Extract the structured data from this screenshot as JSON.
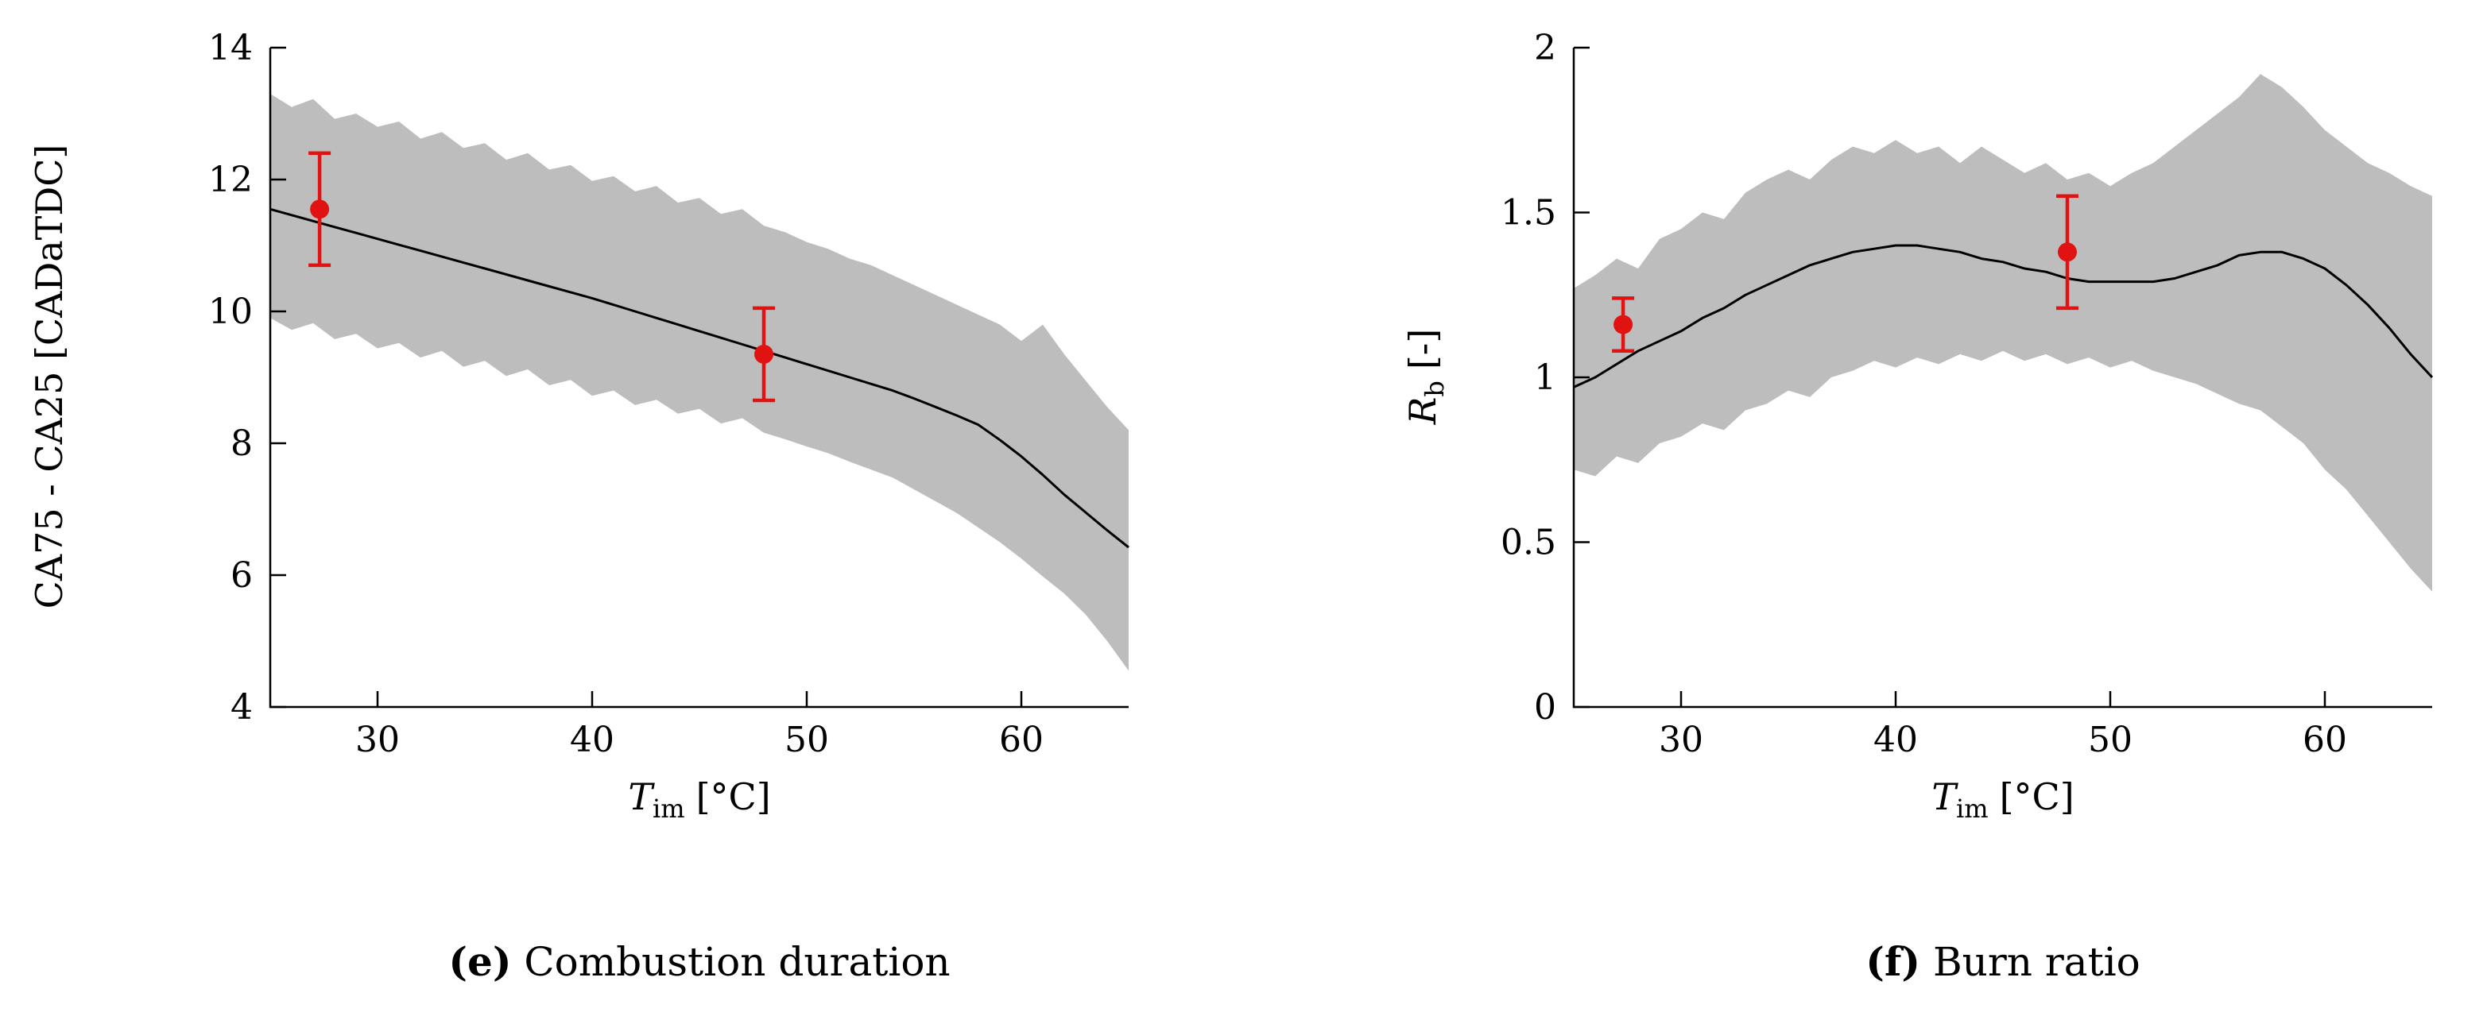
{
  "figure": {
    "band_color": "#bdbdbd",
    "line_color": "#000000",
    "point_color": "#e11212",
    "axis_color": "#000000"
  },
  "charts": [
    {
      "id": "combustion-duration",
      "type": "line",
      "caption_label": "(e)",
      "caption_text": "Combustion duration",
      "ylabel": "CA75 - CA25 [CADaTDC]",
      "xlabel": {
        "var": "T",
        "sub": "im",
        "unit": "[°C]"
      },
      "xlim": [
        25,
        65
      ],
      "ylim": [
        4,
        14
      ],
      "xticks": [
        30,
        40,
        50,
        60
      ],
      "xtick_labels": [
        "30",
        "40",
        "50",
        "60"
      ],
      "yticks": [
        4,
        6,
        8,
        10,
        12,
        14
      ],
      "ytick_labels": [
        "4",
        "6",
        "8",
        "10",
        "12",
        "14"
      ],
      "x_start": 25,
      "x_step": 1,
      "mean": [
        11.55,
        11.46,
        11.37,
        11.28,
        11.19,
        11.1,
        11.01,
        10.92,
        10.83,
        10.74,
        10.65,
        10.56,
        10.47,
        10.38,
        10.29,
        10.2,
        10.1,
        10.0,
        9.9,
        9.8,
        9.7,
        9.6,
        9.5,
        9.4,
        9.3,
        9.2,
        9.1,
        9.0,
        8.9,
        8.8,
        8.68,
        8.55,
        8.42,
        8.28,
        8.05,
        7.8,
        7.52,
        7.22,
        6.95,
        6.68,
        6.42
      ],
      "band_upper": [
        13.3,
        13.1,
        13.22,
        12.92,
        13.0,
        12.8,
        12.88,
        12.62,
        12.72,
        12.48,
        12.55,
        12.3,
        12.4,
        12.15,
        12.22,
        11.98,
        12.05,
        11.82,
        11.9,
        11.65,
        11.72,
        11.48,
        11.55,
        11.3,
        11.2,
        11.05,
        10.95,
        10.8,
        10.7,
        10.55,
        10.4,
        10.25,
        10.1,
        9.95,
        9.8,
        9.55,
        9.8,
        9.35,
        8.95,
        8.55,
        8.2
      ],
      "band_lower": [
        9.9,
        9.72,
        9.82,
        9.58,
        9.66,
        9.44,
        9.52,
        9.3,
        9.4,
        9.16,
        9.25,
        9.02,
        9.12,
        8.88,
        8.96,
        8.72,
        8.8,
        8.58,
        8.66,
        8.45,
        8.52,
        8.3,
        8.38,
        8.16,
        8.06,
        7.95,
        7.85,
        7.72,
        7.6,
        7.48,
        7.3,
        7.12,
        6.94,
        6.72,
        6.5,
        6.25,
        5.98,
        5.72,
        5.4,
        5.0,
        4.55
      ],
      "points": [
        {
          "x": 27.3,
          "y": 11.55,
          "err": 0.85
        },
        {
          "x": 48.0,
          "y": 9.35,
          "err": 0.7
        }
      ]
    },
    {
      "id": "burn-ratio",
      "type": "line",
      "caption_label": "(f)",
      "caption_text": "Burn ratio",
      "ylabel": {
        "var": "R",
        "sub": "b",
        "unit": "[-]"
      },
      "xlabel": {
        "var": "T",
        "sub": "im",
        "unit": "[°C]"
      },
      "xlim": [
        25,
        65
      ],
      "ylim": [
        0,
        2
      ],
      "xticks": [
        30,
        40,
        50,
        60
      ],
      "xtick_labels": [
        "30",
        "40",
        "50",
        "60"
      ],
      "yticks": [
        0,
        0.5,
        1,
        1.5,
        2
      ],
      "ytick_labels": [
        "0",
        "0.5",
        "1",
        "1.5",
        "2"
      ],
      "x_start": 25,
      "x_step": 1,
      "mean": [
        0.97,
        1.0,
        1.04,
        1.08,
        1.11,
        1.14,
        1.18,
        1.21,
        1.25,
        1.28,
        1.31,
        1.34,
        1.36,
        1.38,
        1.39,
        1.4,
        1.4,
        1.39,
        1.38,
        1.36,
        1.35,
        1.33,
        1.32,
        1.3,
        1.29,
        1.29,
        1.29,
        1.29,
        1.3,
        1.32,
        1.34,
        1.37,
        1.38,
        1.38,
        1.36,
        1.33,
        1.28,
        1.22,
        1.15,
        1.07,
        1.0
      ],
      "band_upper": [
        1.27,
        1.31,
        1.36,
        1.33,
        1.42,
        1.45,
        1.5,
        1.48,
        1.56,
        1.6,
        1.63,
        1.6,
        1.66,
        1.7,
        1.68,
        1.72,
        1.68,
        1.7,
        1.65,
        1.7,
        1.66,
        1.62,
        1.65,
        1.6,
        1.62,
        1.58,
        1.62,
        1.65,
        1.7,
        1.75,
        1.8,
        1.85,
        1.92,
        1.88,
        1.82,
        1.75,
        1.7,
        1.65,
        1.62,
        1.58,
        1.55
      ],
      "band_lower": [
        0.72,
        0.7,
        0.76,
        0.74,
        0.8,
        0.82,
        0.86,
        0.84,
        0.9,
        0.92,
        0.96,
        0.94,
        1.0,
        1.02,
        1.05,
        1.03,
        1.06,
        1.04,
        1.07,
        1.05,
        1.08,
        1.05,
        1.07,
        1.04,
        1.06,
        1.03,
        1.05,
        1.02,
        1.0,
        0.98,
        0.95,
        0.92,
        0.9,
        0.85,
        0.8,
        0.72,
        0.66,
        0.58,
        0.5,
        0.42,
        0.35
      ],
      "points": [
        {
          "x": 27.3,
          "y": 1.16,
          "err": 0.08
        },
        {
          "x": 48.0,
          "y": 1.38,
          "err": 0.17
        }
      ]
    }
  ],
  "chart_data": [
    {
      "type": "line",
      "title": "(e) Combustion duration",
      "xlabel": "T_im [°C]",
      "ylabel": "CA75 - CA25 [CADaTDC]",
      "xlim": [
        25,
        65
      ],
      "ylim": [
        4,
        14
      ],
      "legend_position": "none",
      "grid": false,
      "series": [
        {
          "name": "model-mean",
          "style": "black line",
          "x": [
            25,
            30,
            35,
            40,
            45,
            50,
            55,
            60,
            65
          ],
          "y": [
            11.55,
            11.1,
            10.65,
            10.2,
            9.7,
            9.2,
            8.68,
            7.8,
            6.42
          ]
        },
        {
          "name": "confidence-band-upper",
          "style": "gray shaded area edge",
          "x": [
            25,
            30,
            35,
            40,
            45,
            50,
            55,
            60,
            65
          ],
          "y": [
            13.3,
            12.8,
            12.55,
            12.0,
            11.7,
            11.05,
            10.55,
            9.55,
            8.2
          ]
        },
        {
          "name": "confidence-band-lower",
          "style": "gray shaded area edge",
          "x": [
            25,
            30,
            35,
            40,
            45,
            50,
            55,
            60,
            65
          ],
          "y": [
            9.9,
            9.44,
            9.25,
            8.72,
            8.52,
            7.95,
            7.48,
            6.25,
            4.55
          ]
        },
        {
          "name": "experimental-points",
          "style": "red markers with error bars",
          "x": [
            27.3,
            48
          ],
          "y": [
            11.55,
            9.35
          ],
          "yerr": [
            0.85,
            0.7
          ]
        }
      ]
    },
    {
      "type": "line",
      "title": "(f) Burn ratio",
      "xlabel": "T_im [°C]",
      "ylabel": "R_b [-]",
      "xlim": [
        25,
        65
      ],
      "ylim": [
        0,
        2
      ],
      "legend_position": "none",
      "grid": false,
      "series": [
        {
          "name": "model-mean",
          "style": "black line",
          "x": [
            25,
            30,
            35,
            40,
            45,
            50,
            55,
            60,
            65
          ],
          "y": [
            0.97,
            1.14,
            1.31,
            1.4,
            1.35,
            1.29,
            1.34,
            1.33,
            1.0
          ]
        },
        {
          "name": "confidence-band-upper",
          "style": "gray shaded area edge",
          "x": [
            25,
            30,
            35,
            40,
            45,
            50,
            55,
            60,
            65
          ],
          "y": [
            1.27,
            1.45,
            1.63,
            1.72,
            1.66,
            1.58,
            1.8,
            1.75,
            1.55
          ]
        },
        {
          "name": "confidence-band-lower",
          "style": "gray shaded area edge",
          "x": [
            25,
            30,
            35,
            40,
            45,
            50,
            55,
            60,
            65
          ],
          "y": [
            0.72,
            0.82,
            0.96,
            1.03,
            1.08,
            1.03,
            0.95,
            0.72,
            0.35
          ]
        },
        {
          "name": "experimental-points",
          "style": "red markers with error bars",
          "x": [
            27.3,
            48
          ],
          "y": [
            1.16,
            1.38
          ],
          "yerr": [
            0.08,
            0.17
          ]
        }
      ]
    }
  ]
}
